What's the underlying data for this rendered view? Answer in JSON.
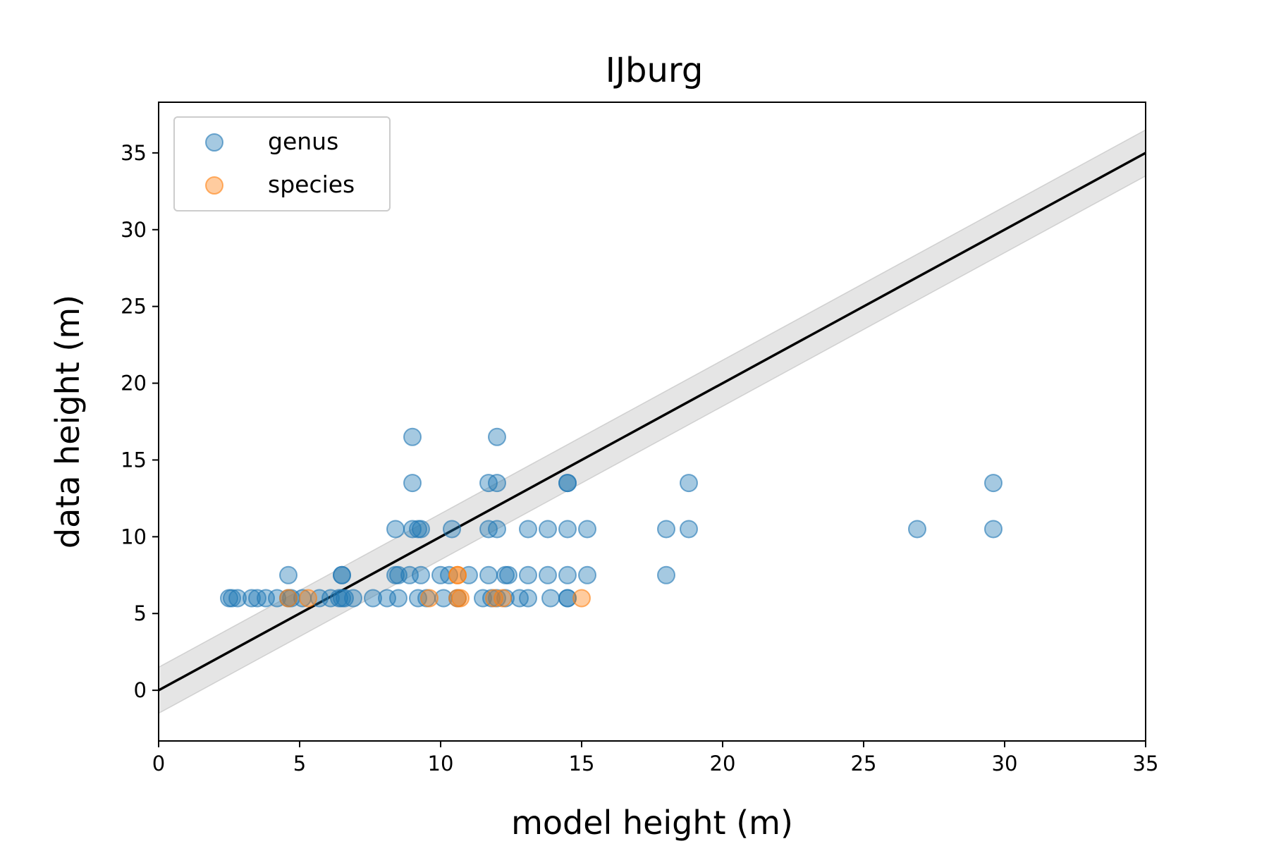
{
  "chart_data": {
    "type": "scatter",
    "title": "IJburg",
    "xlabel": "model height (m)",
    "ylabel": "data height (m)",
    "xlim": [
      0,
      35
    ],
    "ylim": [
      -3.3,
      38.3
    ],
    "xticks": [
      0,
      5,
      10,
      15,
      20,
      25,
      30,
      35
    ],
    "yticks": [
      0,
      5,
      10,
      15,
      20,
      25,
      30,
      35
    ],
    "grid": false,
    "legend": {
      "placement": "top-left"
    },
    "reference_line": {
      "slope": 1,
      "intercept": 0,
      "band": 1.5,
      "color": "#000000",
      "band_color": "#cccccc"
    },
    "series": [
      {
        "name": "genus",
        "color": "#1f77b4",
        "alpha": 0.4,
        "points": [
          [
            2.5,
            6
          ],
          [
            2.6,
            6
          ],
          [
            2.8,
            6
          ],
          [
            3.3,
            6
          ],
          [
            3.5,
            6
          ],
          [
            3.8,
            6
          ],
          [
            4.2,
            6
          ],
          [
            4.6,
            6
          ],
          [
            4.7,
            6
          ],
          [
            5.1,
            6
          ],
          [
            5.7,
            6
          ],
          [
            6.1,
            6
          ],
          [
            6.4,
            6
          ],
          [
            6.5,
            6
          ],
          [
            6.6,
            6
          ],
          [
            6.9,
            6
          ],
          [
            4.6,
            7.5
          ],
          [
            6.5,
            7.5
          ],
          [
            6.5,
            7.5
          ],
          [
            7.6,
            6
          ],
          [
            8.1,
            6
          ],
          [
            8.5,
            6
          ],
          [
            9.2,
            6
          ],
          [
            9.5,
            6
          ],
          [
            10.1,
            6
          ],
          [
            10.6,
            6
          ],
          [
            11.5,
            6
          ],
          [
            11.8,
            6
          ],
          [
            12.0,
            6
          ],
          [
            12.3,
            6
          ],
          [
            12.8,
            6
          ],
          [
            13.1,
            6
          ],
          [
            13.9,
            6
          ],
          [
            14.5,
            6
          ],
          [
            14.5,
            6
          ],
          [
            8.4,
            7.5
          ],
          [
            8.5,
            7.5
          ],
          [
            8.9,
            7.5
          ],
          [
            9.3,
            7.5
          ],
          [
            10.0,
            7.5
          ],
          [
            10.3,
            7.5
          ],
          [
            11.0,
            7.5
          ],
          [
            11.7,
            7.5
          ],
          [
            12.3,
            7.5
          ],
          [
            12.4,
            7.5
          ],
          [
            13.1,
            7.5
          ],
          [
            13.8,
            7.5
          ],
          [
            14.5,
            7.5
          ],
          [
            15.2,
            7.5
          ],
          [
            8.4,
            10.5
          ],
          [
            9.0,
            10.5
          ],
          [
            9.2,
            10.5
          ],
          [
            9.3,
            10.5
          ],
          [
            10.4,
            10.5
          ],
          [
            11.7,
            10.5
          ],
          [
            12.0,
            10.5
          ],
          [
            13.1,
            10.5
          ],
          [
            13.8,
            10.5
          ],
          [
            14.5,
            10.5
          ],
          [
            15.2,
            10.5
          ],
          [
            9.0,
            13.5
          ],
          [
            11.7,
            13.5
          ],
          [
            12.0,
            13.5
          ],
          [
            14.5,
            13.5
          ],
          [
            14.5,
            13.5
          ],
          [
            9.0,
            16.5
          ],
          [
            12.0,
            16.5
          ],
          [
            18.0,
            10.5
          ],
          [
            18.8,
            10.5
          ],
          [
            18.8,
            13.5
          ],
          [
            18.0,
            7.5
          ],
          [
            26.9,
            10.5
          ],
          [
            29.6,
            10.5
          ],
          [
            29.6,
            13.5
          ]
        ]
      },
      {
        "name": "species",
        "color": "#ff7f0e",
        "alpha": 0.4,
        "points": [
          [
            4.6,
            6
          ],
          [
            5.3,
            6
          ],
          [
            9.6,
            6
          ],
          [
            10.6,
            6
          ],
          [
            10.7,
            6
          ],
          [
            11.9,
            6
          ],
          [
            12.2,
            6
          ],
          [
            15.0,
            6
          ],
          [
            10.6,
            7.5
          ],
          [
            10.6,
            7.5
          ]
        ]
      }
    ]
  }
}
